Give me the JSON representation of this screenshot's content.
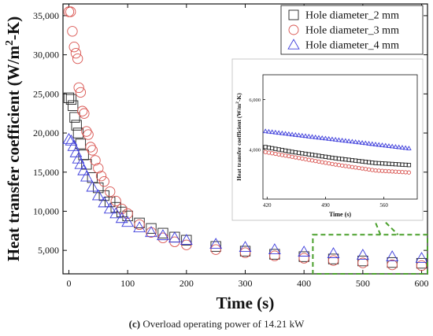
{
  "chart_data": {
    "type": "scatter",
    "xlabel": "Time (s)",
    "ylabel_main": "Heat transfer coefficient (W/m",
    "ylabel_sup": "2",
    "ylabel_end": "-K)",
    "xlim": [
      -10,
      610
    ],
    "ylim": [
      2000,
      36500
    ],
    "x_ticks": [
      0,
      100,
      200,
      300,
      400,
      500,
      600
    ],
    "y_ticks": [
      5000,
      10000,
      15000,
      20000,
      25000,
      30000,
      35000
    ],
    "y_tick_labels": [
      "5,000",
      "10,000",
      "15,000",
      "20,000",
      "25,000",
      "30,000",
      "35,000"
    ],
    "legend_position": "top-right",
    "series": [
      {
        "name": "Hole diameter_2 mm",
        "marker": "square",
        "color": "#222222",
        "points": [
          [
            0,
            24500
          ],
          [
            4,
            24300
          ],
          [
            7,
            23500
          ],
          [
            10,
            22000
          ],
          [
            13,
            21000
          ],
          [
            16,
            20000
          ],
          [
            20,
            18600
          ],
          [
            25,
            17200
          ],
          [
            30,
            16000
          ],
          [
            40,
            14300
          ],
          [
            50,
            13000
          ],
          [
            60,
            12000
          ],
          [
            70,
            11200
          ],
          [
            80,
            10500
          ],
          [
            90,
            9900
          ],
          [
            100,
            9400
          ],
          [
            120,
            8500
          ],
          [
            140,
            7800
          ],
          [
            160,
            7200
          ],
          [
            180,
            6700
          ],
          [
            200,
            6300
          ],
          [
            250,
            5500
          ],
          [
            300,
            4900
          ],
          [
            350,
            4500
          ],
          [
            400,
            4200
          ],
          [
            450,
            3900
          ],
          [
            500,
            3650
          ],
          [
            550,
            3450
          ],
          [
            600,
            3350
          ]
        ]
      },
      {
        "name": "Hole diameter_3 mm",
        "marker": "circle",
        "color": "#d9534f",
        "points": [
          [
            0,
            35500
          ],
          [
            3,
            35500
          ],
          [
            6,
            33000
          ],
          [
            9,
            31000
          ],
          [
            12,
            30200
          ],
          [
            15,
            29500
          ],
          [
            17,
            25800
          ],
          [
            20,
            25200
          ],
          [
            23,
            22800
          ],
          [
            26,
            22500
          ],
          [
            30,
            20200
          ],
          [
            33,
            19800
          ],
          [
            37,
            18200
          ],
          [
            40,
            17800
          ],
          [
            45,
            16500
          ],
          [
            50,
            15500
          ],
          [
            55,
            14500
          ],
          [
            60,
            13800
          ],
          [
            70,
            12500
          ],
          [
            80,
            11300
          ],
          [
            90,
            10300
          ],
          [
            100,
            9700
          ],
          [
            120,
            8300
          ],
          [
            140,
            7300
          ],
          [
            160,
            6600
          ],
          [
            180,
            6100
          ],
          [
            200,
            5700
          ],
          [
            250,
            5100
          ],
          [
            300,
            4700
          ],
          [
            350,
            4300
          ],
          [
            400,
            4000
          ],
          [
            450,
            3700
          ],
          [
            500,
            3400
          ],
          [
            550,
            3150
          ],
          [
            600,
            3050
          ]
        ]
      },
      {
        "name": "Hole diameter_4 mm",
        "marker": "triangle",
        "color": "#3b3bdb",
        "points": [
          [
            0,
            19200
          ],
          [
            4,
            19000
          ],
          [
            8,
            18300
          ],
          [
            12,
            17500
          ],
          [
            16,
            16700
          ],
          [
            20,
            16000
          ],
          [
            25,
            15200
          ],
          [
            30,
            14400
          ],
          [
            40,
            13100
          ],
          [
            50,
            12000
          ],
          [
            60,
            11100
          ],
          [
            70,
            10300
          ],
          [
            80,
            9700
          ],
          [
            90,
            9100
          ],
          [
            100,
            8600
          ],
          [
            120,
            7900
          ],
          [
            140,
            7300
          ],
          [
            160,
            6900
          ],
          [
            180,
            6600
          ],
          [
            200,
            6300
          ],
          [
            250,
            5800
          ],
          [
            300,
            5400
          ],
          [
            350,
            5100
          ],
          [
            400,
            4800
          ],
          [
            450,
            4600
          ],
          [
            500,
            4400
          ],
          [
            550,
            4200
          ],
          [
            600,
            4000
          ]
        ]
      }
    ]
  },
  "inset": {
    "xlabel": "Time (s)",
    "ylabel": "Heat transfer coefficient (W/m",
    "ylabel_sup": "2",
    "ylabel_end": "-K)",
    "x_ticks": [
      420,
      490,
      560
    ],
    "y_ticks": [
      4000,
      6000
    ],
    "y_tick_labels": [
      "4,000",
      "6,000"
    ],
    "xlim": [
      415,
      600
    ],
    "ylim": [
      2000,
      7000
    ]
  },
  "caption_prefix": "(c)",
  "caption_text": " Overload operating power of 14.21 kW",
  "colors": {
    "axis": "#111111",
    "zoom_box": "#4aa02c"
  }
}
